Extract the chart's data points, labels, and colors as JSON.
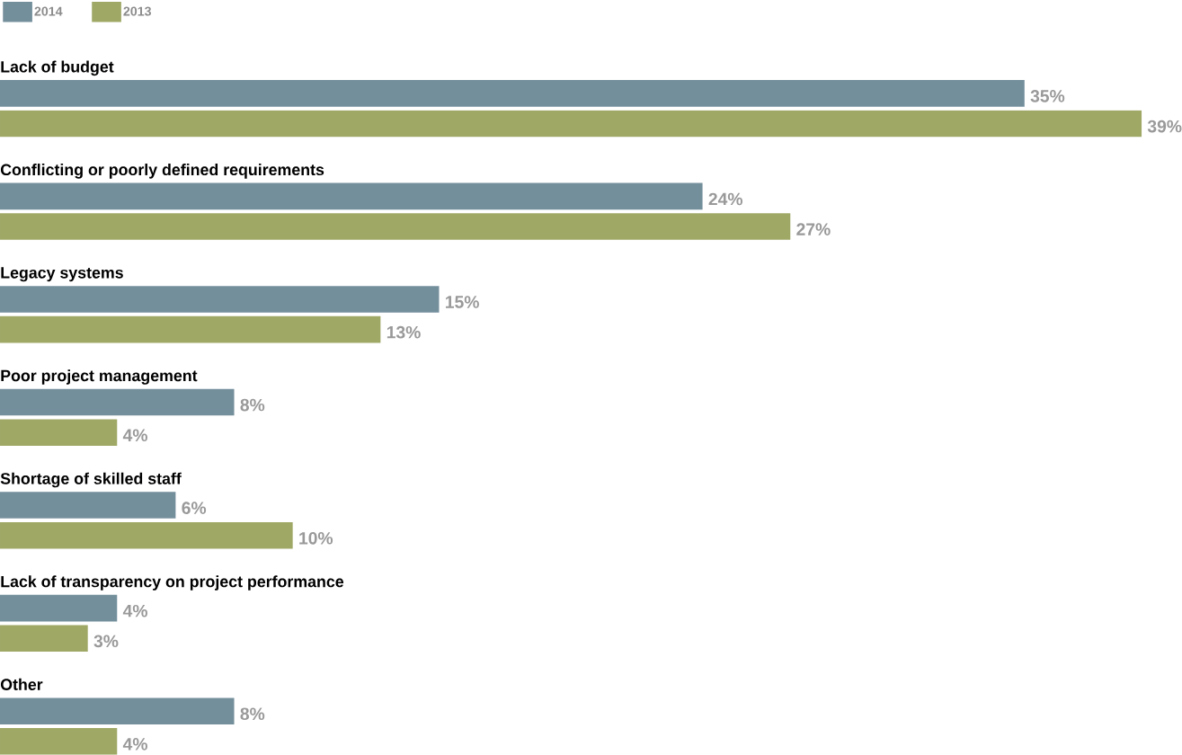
{
  "chart_data": {
    "type": "bar",
    "orientation": "horizontal",
    "legend": "top left",
    "categories": [
      "Lack of budget",
      "Conflicting or poorly defined requirements",
      "Legacy systems",
      "Poor project management",
      "Shortage of skilled staff",
      "Lack of transparency on project performance",
      "Other"
    ],
    "series": [
      {
        "name": "2014",
        "color": "#748f9c",
        "values": [
          35,
          24,
          15,
          8,
          6,
          4,
          8
        ],
        "value_labels": [
          "35%",
          "24%",
          "15%",
          "8%",
          "6%",
          "4%",
          "8%"
        ]
      },
      {
        "name": "2013",
        "color": "#a0a866",
        "values": [
          39,
          27,
          13,
          4,
          10,
          3,
          4
        ],
        "value_labels": [
          "39%",
          "27%",
          "13%",
          "4%",
          "10%",
          "3%",
          "4%"
        ]
      }
    ]
  }
}
